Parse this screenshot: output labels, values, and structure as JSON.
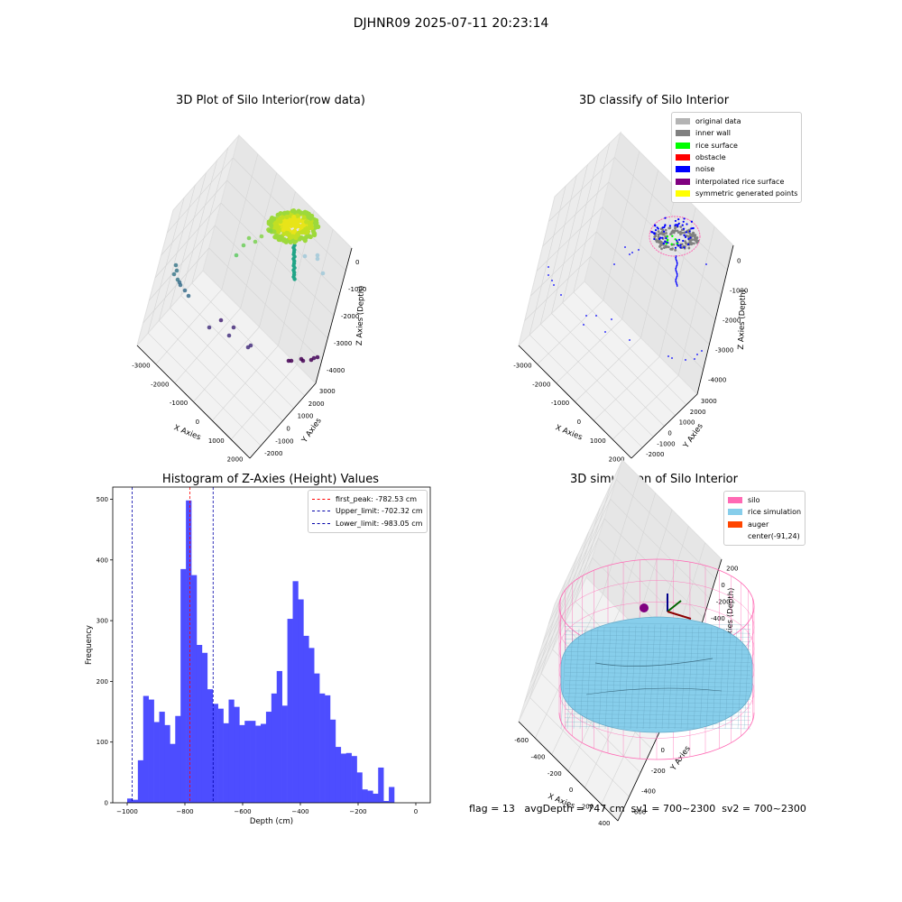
{
  "suptitle": "DJHNR09 2025-07-11 20:23:14",
  "footer": "flag = 13   avgDepth = 747 cm  sv1 = 700~2300  sv2 = 700~2300",
  "chart_data": [
    {
      "type": "scatter",
      "title": "3D Plot of Silo Interior(row data)",
      "xlabel": "X Axies",
      "ylabel": "Y Axies",
      "zlabel": "Z Axies (Depth)",
      "xticks": [
        "-3000",
        "-2000",
        "-1000",
        "0",
        "1000",
        "2000"
      ],
      "yticks": [
        "-2000",
        "-1000",
        "0",
        "1000",
        "2000",
        "3000"
      ],
      "zticks": [
        "0",
        "-1000",
        "-2000",
        "-3000",
        "-4000"
      ]
    },
    {
      "type": "scatter",
      "title": "3D classify of Silo Interior",
      "xlabel": "X Axies",
      "ylabel": "Y Axies",
      "zlabel": "Z Axies (Depth)",
      "xticks": [
        "-3000",
        "-2000",
        "-1000",
        "0",
        "1000",
        "2000"
      ],
      "yticks": [
        "-2000",
        "-1000",
        "0",
        "1000",
        "2000",
        "3000"
      ],
      "zticks": [
        "0",
        "-1000",
        "-2000",
        "-3000",
        "-4000"
      ],
      "legend": [
        {
          "label": "original data",
          "color": "#b4b4b4"
        },
        {
          "label": "inner wall",
          "color": "#808080"
        },
        {
          "label": "rice surface",
          "color": "#00ff00"
        },
        {
          "label": "obstacle",
          "color": "#ff0000"
        },
        {
          "label": "noise",
          "color": "#0000ff"
        },
        {
          "label": "interpolated rice surface",
          "color": "#800080"
        },
        {
          "label": "symmetric generated points",
          "color": "#ffff00"
        }
      ]
    },
    {
      "type": "bar",
      "title": "Histogram of Z-Axies (Height) Values",
      "xlabel": "Depth (cm)",
      "ylabel": "Frequency",
      "xlim": [
        -1050,
        50
      ],
      "ylim": [
        0,
        520
      ],
      "bin_start": -1000,
      "bin_width": 18.5,
      "values": [
        7,
        5,
        70,
        176,
        170,
        133,
        150,
        128,
        97,
        143,
        385,
        498,
        375,
        260,
        247,
        187,
        163,
        155,
        131,
        170,
        158,
        128,
        135,
        135,
        127,
        130,
        150,
        180,
        217,
        160,
        303,
        365,
        335,
        275,
        255,
        213,
        180,
        177,
        137,
        92,
        81,
        82,
        77,
        50,
        22,
        20,
        15,
        58,
        3,
        26
      ],
      "bar_color": "#4d4dff",
      "xticks": [
        -1000,
        -800,
        -600,
        -400,
        -200,
        0
      ],
      "yticks": [
        0,
        100,
        200,
        300,
        400,
        500
      ],
      "lines": [
        {
          "label": "first_peak: -782.53 cm",
          "value": -782.53,
          "color": "#ff0000"
        },
        {
          "label": "Upper_limit: -702.32 cm",
          "value": -702.32,
          "color": "#0000aa"
        },
        {
          "label": "Lower_limit: -983.05 cm",
          "value": -983.05,
          "color": "#0000aa"
        }
      ]
    },
    {
      "type": "scatter",
      "title": "3D simulation of Silo Interior",
      "xlabel": "X Axies",
      "ylabel": "Y Axies",
      "zlabel": "Z Axies (Depth)",
      "xticks": [
        "-600",
        "-400",
        "-200",
        "0",
        "200",
        "400"
      ],
      "yticks": [
        "-600",
        "-400",
        "-200",
        "0",
        "200",
        "400",
        "600"
      ],
      "zticks": [
        "200",
        "0",
        "-200",
        "-400",
        "-600",
        "-800",
        "-1000"
      ],
      "legend": [
        {
          "label": "silo",
          "color": "#ff69b4"
        },
        {
          "label": "rice simulation",
          "color": "#87ceeb"
        },
        {
          "label": "auger",
          "color": "#ff4500"
        },
        {
          "label": "center(-91,24)",
          "color": "none"
        }
      ]
    }
  ]
}
